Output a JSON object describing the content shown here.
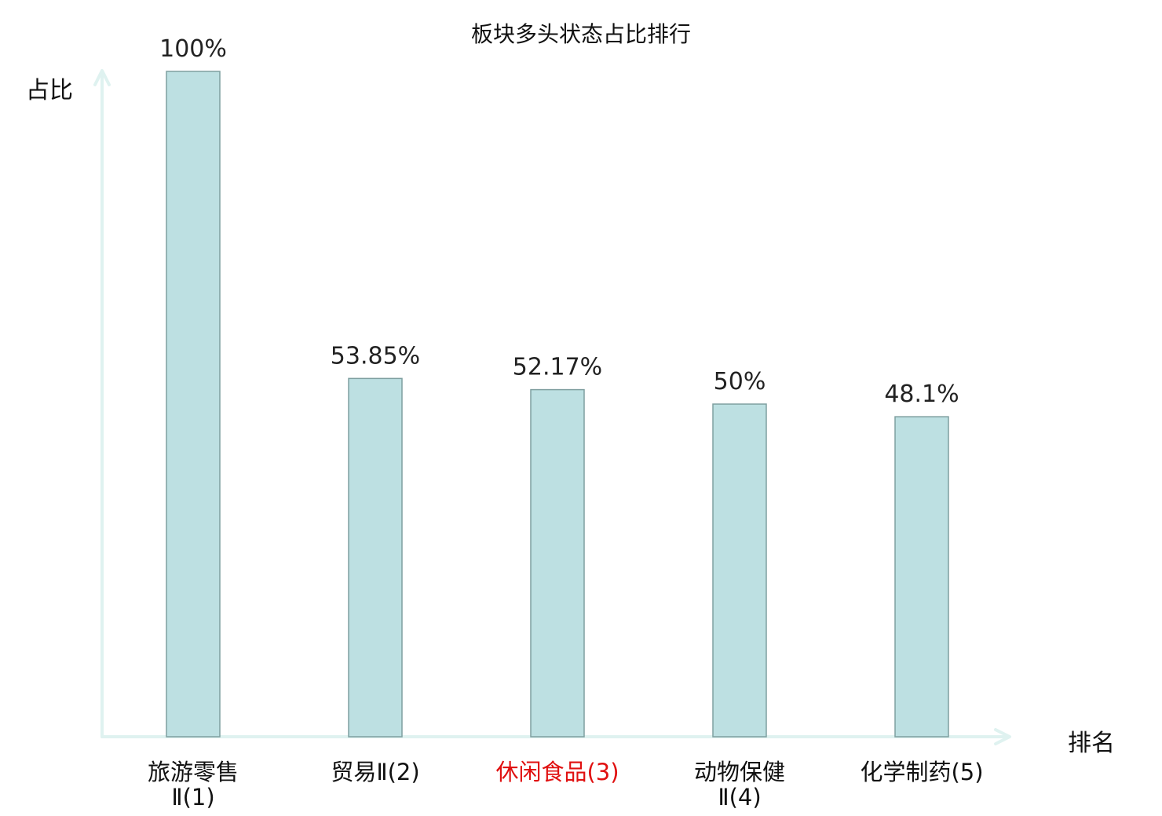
{
  "chart_data": {
    "type": "bar",
    "title": "板块多头状态占比排行",
    "ylabel": "占比",
    "xlabel": "排名",
    "ylim": [
      0,
      100
    ],
    "grid": false,
    "categories": [
      {
        "line1": "旅游零售",
        "line2": "Ⅱ(1)",
        "highlight": false
      },
      {
        "line1": "贸易Ⅱ(2)",
        "line2": "",
        "highlight": false
      },
      {
        "line1": "休闲食品(3)",
        "line2": "",
        "highlight": true
      },
      {
        "line1": "动物保健",
        "line2": "Ⅱ(4)",
        "highlight": false
      },
      {
        "line1": "化学制药(5)",
        "line2": "",
        "highlight": false
      }
    ],
    "values": [
      100,
      53.85,
      52.17,
      50,
      48.1
    ],
    "value_labels": [
      "100%",
      "53.85%",
      "52.17%",
      "50%",
      "48.1%"
    ],
    "colors": {
      "bar_fill": "#bde0e2",
      "bar_stroke": "#7f9fa0",
      "axis": "#dff2f0",
      "highlight_text": "#e01010",
      "text": "#222222"
    }
  }
}
